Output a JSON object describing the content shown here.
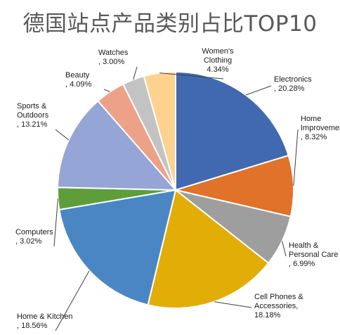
{
  "chart_data": {
    "type": "pie",
    "title": "德国站点产品类别占比TOP10",
    "slices": [
      {
        "name": "Electronics",
        "value": 20.28,
        "label": [
          "Electronics",
          ", 20.28%"
        ],
        "color": "#4169AF"
      },
      {
        "name": "Home Improvement",
        "value": 8.32,
        "label": [
          "Home",
          "Improvement",
          ", 8.32%"
        ],
        "color": "#E0722A"
      },
      {
        "name": "Health & Personal Care",
        "value": 6.99,
        "label": [
          "Health &",
          "Personal Care",
          ", 6.99%"
        ],
        "color": "#9E9E9E"
      },
      {
        "name": "Cell Phones & Accessories",
        "value": 18.18,
        "label": [
          "Cell Phones &",
          "Accessories,",
          "18.18%"
        ],
        "color": "#E3AD08"
      },
      {
        "name": "Home & Kitchen",
        "value": 18.56,
        "label": [
          "Home & Kitchen",
          ", 18.56%"
        ],
        "color": "#4B86C4"
      },
      {
        "name": "Computers",
        "value": 3.02,
        "label": [
          "Computers",
          ", 3.02%"
        ],
        "color": "#5E9E3A"
      },
      {
        "name": "Sports & Outdoors",
        "value": 13.21,
        "label": [
          "Sports &",
          "Outdoors",
          ", 13.21%"
        ],
        "color": "#94A5D6"
      },
      {
        "name": "Beauty",
        "value": 4.09,
        "label": [
          "Beauty",
          ", 4.09%"
        ],
        "color": "#EDA288"
      },
      {
        "name": "Watches",
        "value": 3.0,
        "label": [
          "Watches",
          ", 3.00%"
        ],
        "color": "#C3C3C3"
      },
      {
        "name": "Women's Clothing",
        "value": 4.34,
        "label": [
          "Women's",
          "Clothing",
          "4.34%"
        ],
        "color": "#FDD28E"
      }
    ],
    "legend": "none"
  }
}
